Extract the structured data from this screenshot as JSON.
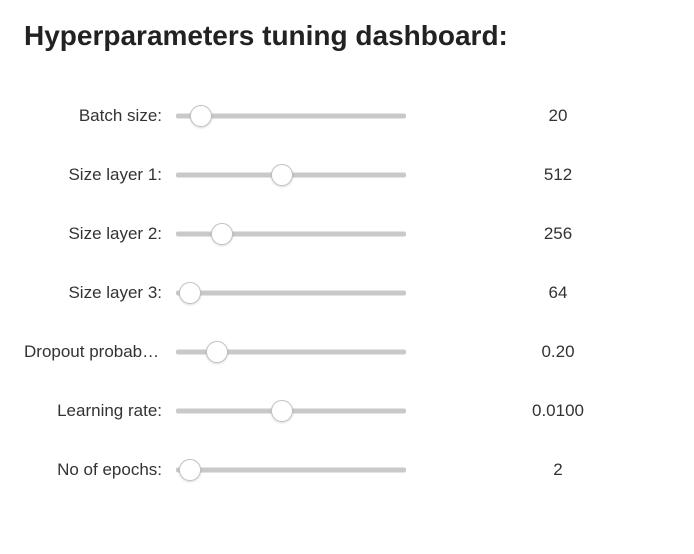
{
  "title": "Hyperparameters tuning dashboard:",
  "title_fontsize": 28,
  "title_color": "#222222",
  "label_fontsize": 17,
  "label_color": "#333333",
  "track_color": "#c9c9c9",
  "thumb_bg": "#ffffff",
  "thumb_border": "#c1c1c1",
  "params": [
    {
      "key": "batch_size",
      "label": "Batch size:",
      "value": "20",
      "pct": 11
    },
    {
      "key": "size_layer_1",
      "label": "Size layer 1:",
      "value": "512",
      "pct": 46
    },
    {
      "key": "size_layer_2",
      "label": "Size layer 2:",
      "value": "256",
      "pct": 20
    },
    {
      "key": "size_layer_3",
      "label": "Size layer 3:",
      "value": "64",
      "pct": 6
    },
    {
      "key": "dropout_prob",
      "label": "Dropout probability:",
      "value": "0.20",
      "pct": 18
    },
    {
      "key": "learning_rate",
      "label": "Learning rate:",
      "value": "0.0100",
      "pct": 46
    },
    {
      "key": "num_epochs",
      "label": "No of epochs:",
      "value": "2",
      "pct": 6
    }
  ]
}
